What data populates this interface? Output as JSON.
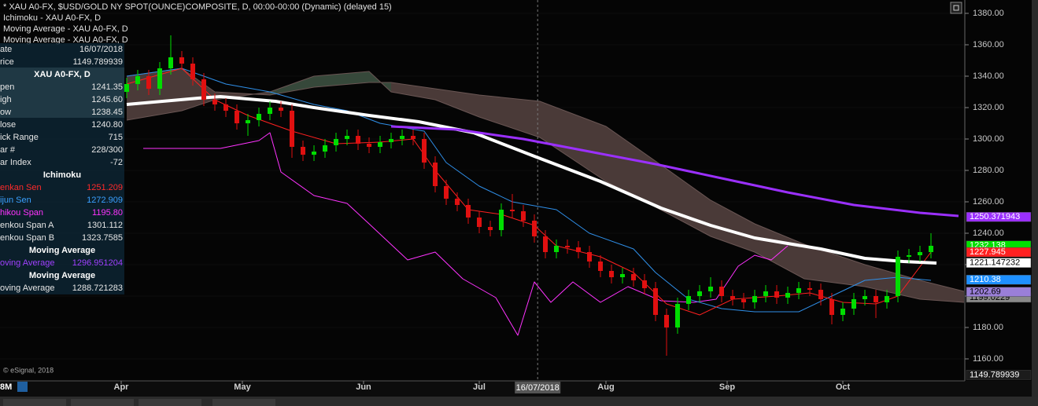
{
  "header": {
    "title": "* XAU A0-FX, $USD/GOLD NY SPOT(OUNCE)COMPOSITE, D, 00:00-00:00 (Dynamic) (delayed 15)",
    "studies": [
      "Ichimoku - XAU A0-FX, D",
      "Moving Average - XAU A0-FX, D",
      "Moving Average - XAU A0-FX, D"
    ]
  },
  "data_window": {
    "rows": [
      {
        "label": "ate",
        "value": "16/07/2018"
      },
      {
        "label": "rice",
        "value": "1149.789939"
      },
      {
        "heading": "XAU A0-FX, D"
      },
      {
        "label": "pen",
        "value": "1241.35"
      },
      {
        "label": "igh",
        "value": "1245.60"
      },
      {
        "label": "ow",
        "value": "1238.45"
      },
      {
        "label": "lose",
        "value": "1240.80"
      },
      {
        "label": "ick Range",
        "value": "715"
      },
      {
        "label": "ar #",
        "value": "228/300"
      },
      {
        "label": "ar Index",
        "value": "-72"
      },
      {
        "heading": "Ichimoku"
      },
      {
        "label": "enkan Sen",
        "value": "1251.209",
        "color": "#ff2a2a"
      },
      {
        "label": "ijun Sen",
        "value": "1272.909",
        "color": "#3aa0ff"
      },
      {
        "label": "hikou Span",
        "value": "1195.80",
        "color": "#ff33ff"
      },
      {
        "label": "enkou Span A",
        "value": "1301.112"
      },
      {
        "label": "enkou Span B",
        "value": "1323.7585"
      },
      {
        "heading": "Moving Average"
      },
      {
        "label": "oving Average",
        "value": "1296.951204",
        "color": "#a040ff"
      },
      {
        "heading": "Moving Average"
      },
      {
        "label": "oving Average",
        "value": "1288.721283"
      }
    ]
  },
  "footer": {
    "copyright": "© eSignal, 2018",
    "period": "8M"
  },
  "chart_data": {
    "type": "candlestick",
    "xlim": [
      -23,
      152
    ],
    "ylim": [
      1146,
      1388.5
    ],
    "yticks": [
      1160,
      1180,
      1200,
      1220,
      1240,
      1260,
      1280,
      1300,
      1320,
      1340,
      1360,
      1380
    ],
    "ytick_labels": [
      {
        "value": 1160,
        "label": "1160.00"
      },
      {
        "value": 1180,
        "label": "1180.00"
      },
      {
        "value": 1200,
        "label": "1200.00"
      },
      {
        "value": 1220,
        "label": "1220.00"
      },
      {
        "value": 1240,
        "label": "1240.00"
      },
      {
        "value": 1260,
        "label": "1260.00"
      },
      {
        "value": 1280,
        "label": "1280.00"
      },
      {
        "value": 1300,
        "label": "1300.00"
      },
      {
        "value": 1320,
        "label": "1320.00"
      },
      {
        "value": 1340,
        "label": "1340.00"
      },
      {
        "value": 1360,
        "label": "1360.00"
      },
      {
        "value": 1380,
        "label": "1380.00"
      }
    ],
    "xticks": [
      {
        "value": -1,
        "label": "Apr"
      },
      {
        "value": 21,
        "label": "May"
      },
      {
        "value": 43,
        "label": "Jun"
      },
      {
        "value": 64,
        "label": "Jul"
      },
      {
        "value": 87,
        "label": "Aug"
      },
      {
        "value": 109,
        "label": "Sep"
      },
      {
        "value": 130,
        "label": "Oct"
      }
    ],
    "cursor": {
      "value": 74.6,
      "label": "16/07/2018"
    },
    "cloud": {
      "x": [
        0,
        10,
        16,
        26,
        34,
        44,
        48,
        56,
        64,
        75,
        87,
        98,
        106,
        114,
        123,
        134,
        144,
        152
      ],
      "span_a": [
        1312,
        1318,
        1325,
        1330,
        1340,
        1343,
        1330,
        1325,
        1314,
        1301,
        1273,
        1253,
        1238,
        1228,
        1211,
        1206,
        1198,
        1196
      ],
      "span_b": [
        1340,
        1345,
        1330,
        1328,
        1333,
        1336,
        1336,
        1332,
        1328,
        1324,
        1308,
        1281,
        1261,
        1246,
        1233,
        1220,
        1210,
        1203
      ],
      "up_color": "#36483a",
      "down_color": "#4a3a38",
      "line_color": "#6a5654"
    },
    "lines": [
      {
        "color": "#ff33ff",
        "width": 1,
        "x": [
          3,
          10,
          17,
          24,
          26,
          28,
          34,
          40,
          44,
          51,
          56,
          61,
          67,
          71,
          74,
          77,
          81,
          86,
          91,
          97,
          103,
          107,
          111,
          114,
          117,
          120
        ],
        "values": [
          1294,
          1294,
          1294,
          1299,
          1304,
          1279,
          1264,
          1259,
          1246,
          1223,
          1228,
          1211,
          1199,
          1175,
          1209,
          1196,
          1209,
          1196,
          1206,
          1197,
          1196,
          1198,
          1219,
          1226,
          1223,
          1232
        ]
      },
      {
        "color": "#2f8fe8",
        "width": 1,
        "x": [
          0,
          10,
          18,
          26,
          34,
          40,
          46,
          54,
          58,
          64,
          70,
          78,
          84,
          92,
          96,
          102,
          108,
          114,
          122,
          128,
          134,
          140,
          146
        ],
        "values": [
          1340,
          1345,
          1335,
          1330,
          1322,
          1318,
          1310,
          1305,
          1285,
          1270,
          1260,
          1255,
          1240,
          1230,
          1215,
          1198,
          1192,
          1190,
          1190,
          1200,
          1210,
          1212,
          1210
        ]
      },
      {
        "color": "#ff2020",
        "width": 1,
        "x": [
          0,
          10,
          16,
          22,
          30,
          38,
          46,
          52,
          56,
          62,
          68,
          74,
          78,
          86,
          92,
          98,
          104,
          110,
          118,
          124,
          130,
          136,
          140,
          146
        ],
        "values": [
          1335,
          1345,
          1325,
          1315,
          1305,
          1297,
          1298,
          1300,
          1280,
          1255,
          1252,
          1245,
          1232,
          1225,
          1215,
          1195,
          1188,
          1198,
          1200,
          1202,
          1196,
          1195,
          1200,
          1228
        ]
      },
      {
        "color": "#ffffff",
        "width": 4,
        "x": [
          0,
          13,
          17,
          27,
          34,
          44,
          53,
          63,
          74,
          86,
          97,
          106,
          114,
          126,
          134,
          141,
          147
        ],
        "values": [
          1322,
          1326,
          1327,
          1324,
          1320,
          1315,
          1311,
          1304,
          1289,
          1273,
          1256,
          1245,
          1237,
          1230,
          1224,
          1222,
          1221
        ]
      },
      {
        "color": "#9b30ff",
        "width": 3,
        "x": [
          48,
          60,
          72,
          84,
          96,
          108,
          120,
          132,
          144,
          151
        ],
        "values": [
          1308,
          1306,
          1300,
          1292,
          1284,
          1275,
          1266,
          1258,
          1253,
          1251
        ]
      }
    ],
    "ohlc": {
      "up_color": "#00dd00",
      "down_color": "#e01010",
      "x": [
        0,
        2,
        4,
        6,
        8,
        10,
        12,
        14,
        16,
        18,
        20,
        22,
        24,
        26,
        28,
        30,
        32,
        34,
        36,
        38,
        40,
        42,
        44,
        46,
        48,
        50,
        52,
        54,
        56,
        58,
        60,
        62,
        64,
        66,
        68,
        70,
        72,
        74,
        76,
        78,
        80,
        82,
        84,
        86,
        88,
        90,
        92,
        94,
        96,
        98,
        100,
        102,
        104,
        106,
        108,
        110,
        112,
        114,
        116,
        118,
        120,
        122,
        124,
        126,
        128,
        130,
        132,
        134,
        136,
        138,
        140,
        142,
        144,
        146
      ],
      "open": [
        1330,
        1335,
        1340,
        1332,
        1345,
        1352,
        1348,
        1338,
        1325,
        1322,
        1318,
        1310,
        1312,
        1316,
        1320,
        1318,
        1295,
        1290,
        1292,
        1296,
        1300,
        1302,
        1297,
        1295,
        1298,
        1300,
        1302,
        1300,
        1285,
        1270,
        1262,
        1258,
        1250,
        1244,
        1242,
        1255,
        1254,
        1248,
        1238,
        1228,
        1232,
        1231,
        1228,
        1222,
        1216,
        1212,
        1214,
        1210,
        1205,
        1188,
        1180,
        1195,
        1200,
        1203,
        1206,
        1200,
        1198,
        1196,
        1200,
        1203,
        1199,
        1202,
        1205,
        1204,
        1198,
        1188,
        1192,
        1198,
        1200,
        1196,
        1200,
        1225,
        1226,
        1228
      ],
      "high": [
        1339,
        1344,
        1344,
        1349,
        1366,
        1356,
        1352,
        1342,
        1329,
        1326,
        1322,
        1316,
        1320,
        1324,
        1324,
        1322,
        1299,
        1296,
        1300,
        1304,
        1306,
        1306,
        1301,
        1302,
        1304,
        1306,
        1306,
        1304,
        1289,
        1274,
        1266,
        1262,
        1254,
        1248,
        1259,
        1265,
        1258,
        1252,
        1242,
        1236,
        1236,
        1235,
        1232,
        1226,
        1220,
        1218,
        1218,
        1214,
        1209,
        1192,
        1199,
        1204,
        1207,
        1212,
        1210,
        1204,
        1202,
        1204,
        1207,
        1207,
        1206,
        1209,
        1209,
        1208,
        1202,
        1196,
        1202,
        1204,
        1204,
        1204,
        1229,
        1230,
        1232,
        1240
      ],
      "low": [
        1326,
        1331,
        1328,
        1328,
        1341,
        1344,
        1334,
        1321,
        1318,
        1314,
        1306,
        1302,
        1308,
        1312,
        1314,
        1288,
        1286,
        1286,
        1288,
        1292,
        1296,
        1293,
        1291,
        1291,
        1294,
        1296,
        1296,
        1281,
        1266,
        1258,
        1254,
        1246,
        1240,
        1238,
        1238,
        1250,
        1244,
        1234,
        1224,
        1224,
        1227,
        1224,
        1218,
        1212,
        1208,
        1208,
        1206,
        1201,
        1184,
        1162,
        1176,
        1191,
        1196,
        1199,
        1196,
        1194,
        1192,
        1192,
        1196,
        1195,
        1195,
        1198,
        1200,
        1194,
        1182,
        1184,
        1188,
        1194,
        1186,
        1192,
        1196,
        1221,
        1222,
        1224
      ],
      "close": [
        1335,
        1340,
        1332,
        1345,
        1352,
        1348,
        1338,
        1325,
        1322,
        1318,
        1310,
        1312,
        1316,
        1320,
        1318,
        1295,
        1290,
        1292,
        1296,
        1300,
        1302,
        1297,
        1295,
        1298,
        1300,
        1302,
        1300,
        1285,
        1270,
        1262,
        1258,
        1250,
        1244,
        1242,
        1255,
        1254,
        1248,
        1238,
        1228,
        1232,
        1231,
        1228,
        1222,
        1216,
        1212,
        1214,
        1210,
        1205,
        1188,
        1180,
        1195,
        1200,
        1203,
        1206,
        1200,
        1198,
        1196,
        1200,
        1203,
        1199,
        1202,
        1205,
        1204,
        1198,
        1188,
        1192,
        1198,
        1200,
        1196,
        1200,
        1225,
        1226,
        1228,
        1232
      ]
    },
    "price_labels": [
      {
        "value": 1250.371943,
        "color": "#9b30ff",
        "text_color": "#ffffff"
      },
      {
        "value": 1232.138,
        "color": "#00e000",
        "text_color": "#ffffff"
      },
      {
        "value": 1227.945,
        "color": "#ff2020",
        "text_color": "#ffffff"
      },
      {
        "value": 1221.147232,
        "color": "#ffffff",
        "text_color": "#000000"
      },
      {
        "value": 1210.38,
        "color": "#1e90ff",
        "text_color": "#ffffff"
      },
      {
        "value": 1199.0229,
        "color": "#8a8a8a",
        "text_color": "#000000"
      },
      {
        "value": 1202.69,
        "color": "#9a7fd8",
        "text_color": "#000000"
      },
      {
        "value": 1149.789939,
        "color": "#1c1c1c",
        "text_color": "#ffffff"
      }
    ]
  }
}
